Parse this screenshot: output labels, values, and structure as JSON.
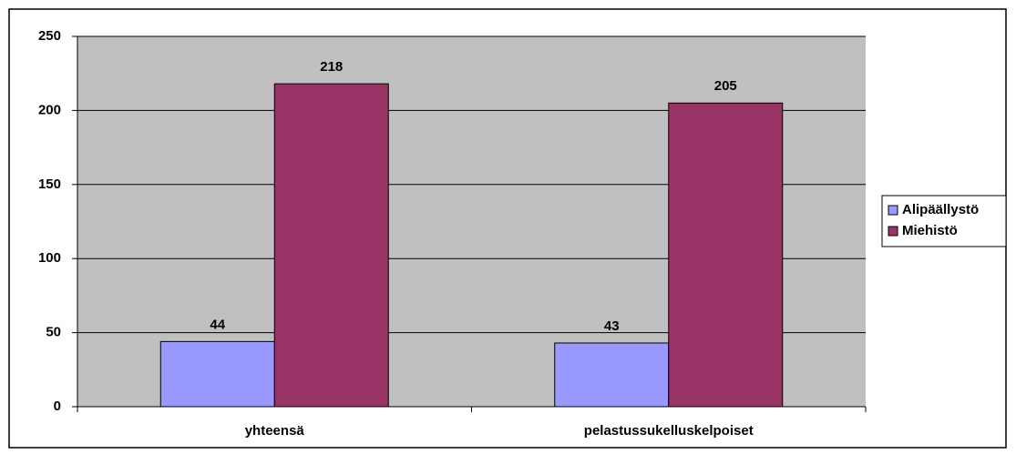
{
  "chart_data": {
    "type": "bar",
    "categories": [
      "yhteensä",
      "pelastussukelluskelpoiset"
    ],
    "series": [
      {
        "name": "Alipäällystö",
        "color": "#9999ff",
        "values": [
          44,
          43
        ]
      },
      {
        "name": "Miehistö",
        "color": "#993366",
        "values": [
          218,
          205
        ]
      }
    ],
    "ylim": [
      0,
      250
    ],
    "yticks": [
      0,
      50,
      100,
      150,
      200,
      250
    ],
    "grid": true,
    "legend": "right"
  }
}
